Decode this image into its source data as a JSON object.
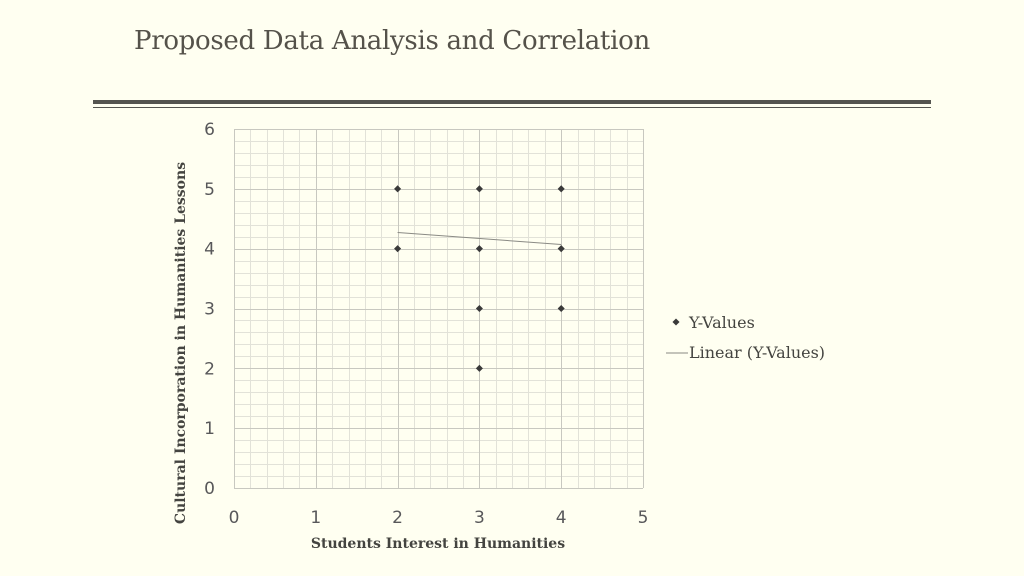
{
  "slide": {
    "title": "Proposed Data Analysis and Correlation"
  },
  "chart_data": {
    "type": "scatter",
    "xlabel": "Students Interest in Humanities",
    "ylabel": "Cultural Incorporation in Humanities Lessons",
    "xlim": [
      0,
      5
    ],
    "ylim": [
      0,
      6
    ],
    "x_ticks": [
      "0",
      "1",
      "2",
      "3",
      "4",
      "5"
    ],
    "y_ticks": [
      "0",
      "1",
      "2",
      "3",
      "4",
      "5",
      "6"
    ],
    "grid": true,
    "legend_position": "right",
    "series": [
      {
        "name": "Y-Values",
        "points": [
          {
            "x": 2,
            "y": 5
          },
          {
            "x": 2,
            "y": 4
          },
          {
            "x": 3,
            "y": 5
          },
          {
            "x": 3,
            "y": 4
          },
          {
            "x": 3,
            "y": 3
          },
          {
            "x": 3,
            "y": 2
          },
          {
            "x": 4,
            "y": 5
          },
          {
            "x": 4,
            "y": 4
          },
          {
            "x": 4,
            "y": 3
          }
        ]
      }
    ],
    "trendline": {
      "name": "Linear (Y-Values)",
      "x": [
        2,
        4
      ],
      "y": [
        4.27,
        4.07
      ]
    },
    "colors": {
      "marker": "#3a3a3a",
      "trendline": "#8a8a84",
      "grid_major": "#c8c8c0",
      "grid_minor": "#e2e2d8"
    }
  }
}
